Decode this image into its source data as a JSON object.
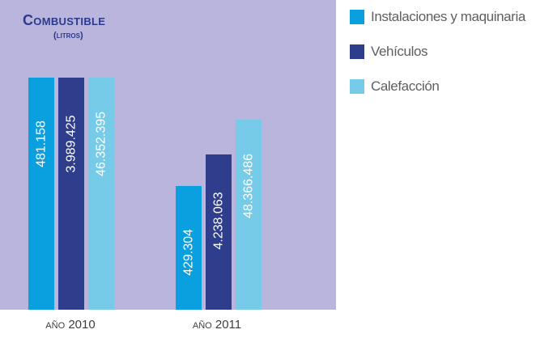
{
  "chart_data": {
    "type": "bar",
    "title": "Combustible",
    "subtitle": "(litros)",
    "categories": [
      {
        "prefix": "año",
        "year": "2010"
      },
      {
        "prefix": "año",
        "year": "2011"
      }
    ],
    "series": [
      {
        "name": "Instalaciones y maquinaria",
        "color": "#0aa0df",
        "labels": [
          "481.158",
          "429.304"
        ],
        "values": [
          481158,
          429304
        ]
      },
      {
        "name": "Vehículos",
        "color": "#2e3d8c",
        "labels": [
          "3.989.425",
          "4.238.063"
        ],
        "values": [
          3989425,
          4238063
        ]
      },
      {
        "name": "Calefacción",
        "color": "#76cbe8",
        "labels": [
          "46.352.395",
          "48.366.486"
        ],
        "values": [
          46352395,
          48366486
        ]
      }
    ],
    "ylim": [
      0,
      60000000
    ],
    "grid": false,
    "legend_position": "right"
  },
  "colors": {
    "panel_background": "#b9b5dc",
    "title": "#2b3a8c"
  }
}
